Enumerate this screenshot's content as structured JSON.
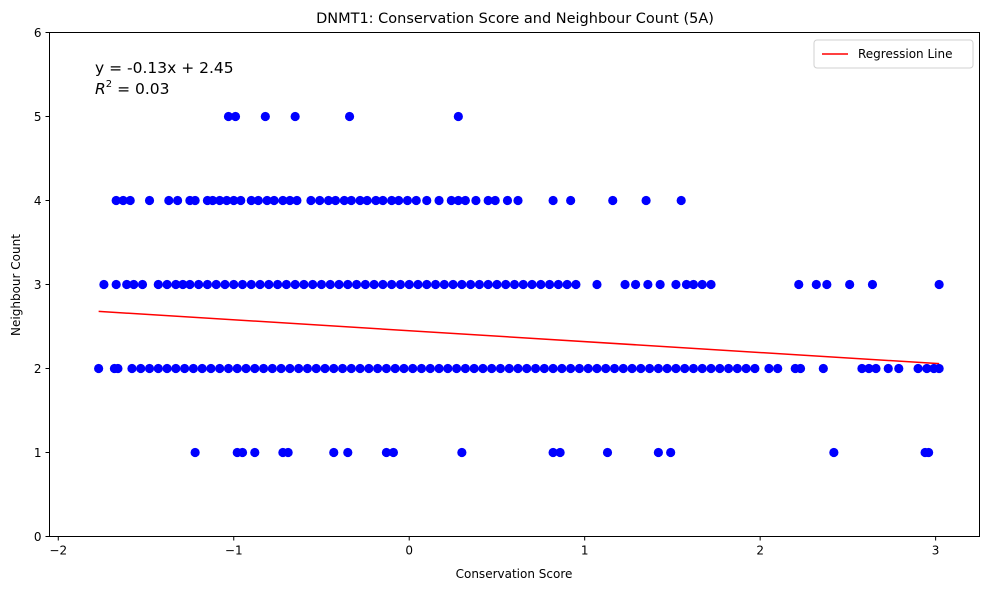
{
  "chart_data": {
    "type": "scatter",
    "title": "DNMT1: Conservation Score and Neighbour Count (5A)",
    "xlabel": "Conservation Score",
    "ylabel": "Neighbour Count",
    "xlim": [
      -2.05,
      3.25
    ],
    "ylim": [
      0,
      6
    ],
    "xticks": [
      -2,
      -1,
      0,
      1,
      2,
      3
    ],
    "xtick_labels": [
      "−2",
      "−1",
      "0",
      "1",
      "2",
      "3"
    ],
    "yticks": [
      0,
      1,
      2,
      3,
      4,
      5,
      6
    ],
    "ytick_labels": [
      "0",
      "1",
      "2",
      "3",
      "4",
      "5",
      "6"
    ],
    "grid": false,
    "legend_position": "top-right",
    "point_color": "#0000ff",
    "line_color": "#ff0000",
    "annotation": {
      "equation": "y = -0.13x + 2.45",
      "r2_label": "R",
      "r2_sup": "2",
      "r2_value": " = 0.03"
    },
    "regression_line": {
      "name": "Regression Line",
      "slope": -0.13,
      "intercept": 2.45,
      "x_range": [
        -1.77,
        3.02
      ]
    },
    "series": [
      {
        "y": 1,
        "x": [
          -1.22,
          -0.98,
          -0.95,
          -0.88,
          -0.72,
          -0.69,
          -0.43,
          -0.35,
          -0.13,
          -0.09,
          0.3,
          0.82,
          0.86,
          1.13,
          1.42,
          1.49,
          2.42,
          2.94,
          2.96
        ]
      },
      {
        "y": 2,
        "x": [
          -1.77,
          -1.68,
          -1.66,
          -1.58,
          -1.53,
          -1.48,
          -1.43,
          -1.38,
          -1.33,
          -1.28,
          -1.23,
          -1.18,
          -1.13,
          -1.08,
          -1.03,
          -0.98,
          -0.93,
          -0.88,
          -0.83,
          -0.78,
          -0.73,
          -0.68,
          -0.63,
          -0.58,
          -0.53,
          -0.48,
          -0.43,
          -0.38,
          -0.33,
          -0.28,
          -0.23,
          -0.18,
          -0.13,
          -0.08,
          -0.03,
          0.02,
          0.07,
          0.12,
          0.17,
          0.22,
          0.27,
          0.32,
          0.37,
          0.42,
          0.47,
          0.52,
          0.57,
          0.62,
          0.67,
          0.72,
          0.77,
          0.82,
          0.87,
          0.92,
          0.97,
          1.02,
          1.07,
          1.12,
          1.17,
          1.22,
          1.27,
          1.32,
          1.37,
          1.42,
          1.47,
          1.52,
          1.57,
          1.62,
          1.67,
          1.72,
          1.77,
          1.82,
          1.87,
          1.92,
          1.97,
          2.05,
          2.1,
          2.2,
          2.23,
          2.36,
          2.58,
          2.62,
          2.66,
          2.73,
          2.79,
          2.9,
          2.95,
          2.99,
          3.02
        ]
      },
      {
        "y": 3,
        "x": [
          -1.74,
          -1.67,
          -1.61,
          -1.57,
          -1.52,
          -1.43,
          -1.38,
          -1.33,
          -1.29,
          -1.25,
          -1.2,
          -1.15,
          -1.1,
          -1.05,
          -1.0,
          -0.95,
          -0.9,
          -0.85,
          -0.8,
          -0.75,
          -0.7,
          -0.65,
          -0.6,
          -0.55,
          -0.5,
          -0.45,
          -0.4,
          -0.35,
          -0.3,
          -0.25,
          -0.2,
          -0.15,
          -0.1,
          -0.05,
          0.0,
          0.05,
          0.1,
          0.15,
          0.2,
          0.25,
          0.3,
          0.35,
          0.4,
          0.45,
          0.5,
          0.55,
          0.6,
          0.65,
          0.7,
          0.75,
          0.8,
          0.85,
          0.9,
          0.95,
          1.07,
          1.23,
          1.29,
          1.36,
          1.43,
          1.52,
          1.58,
          1.62,
          1.67,
          1.72,
          2.22,
          2.32,
          2.38,
          2.51,
          2.64,
          3.02
        ]
      },
      {
        "y": 4,
        "x": [
          -1.67,
          -1.63,
          -1.59,
          -1.48,
          -1.37,
          -1.32,
          -1.25,
          -1.22,
          -1.15,
          -1.12,
          -1.08,
          -1.04,
          -1.0,
          -0.96,
          -0.9,
          -0.86,
          -0.81,
          -0.77,
          -0.72,
          -0.68,
          -0.64,
          -0.56,
          -0.51,
          -0.46,
          -0.42,
          -0.37,
          -0.33,
          -0.28,
          -0.24,
          -0.19,
          -0.15,
          -0.1,
          -0.06,
          -0.01,
          0.04,
          0.1,
          0.17,
          0.24,
          0.28,
          0.32,
          0.38,
          0.45,
          0.49,
          0.56,
          0.62,
          0.82,
          0.92,
          1.16,
          1.35,
          1.55
        ]
      },
      {
        "y": 5,
        "x": [
          -1.03,
          -0.99,
          -0.82,
          -0.65,
          -0.34,
          0.28
        ]
      }
    ]
  }
}
